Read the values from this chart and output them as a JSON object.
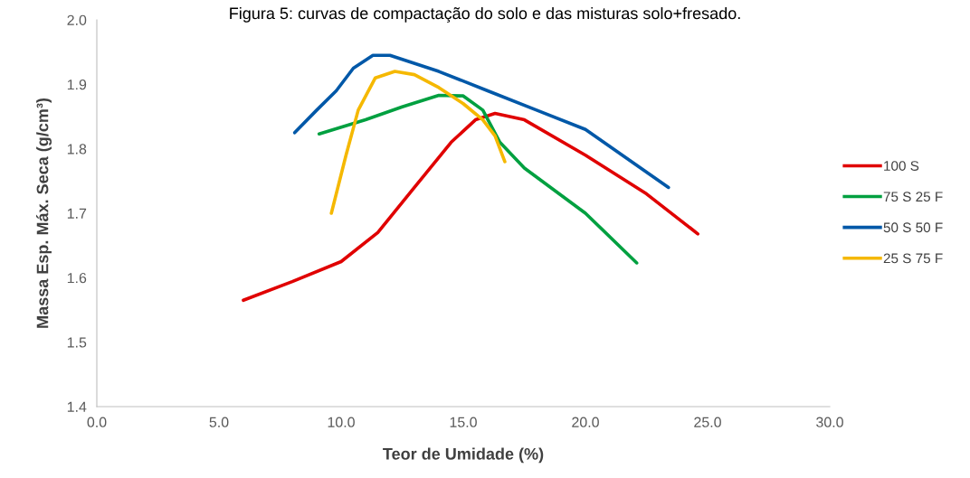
{
  "chart_data": {
    "type": "line",
    "title": "Figura 5: curvas de compactação do solo e das misturas solo+fresado.",
    "xlabel": "Teor de Umidade (%)",
    "ylabel": "Massa Esp. Máx. Seca (g/cm³)",
    "xlim": [
      0,
      30
    ],
    "xticks": [
      {
        "value": 0,
        "label": "0.0"
      },
      {
        "value": 5,
        "label": "5.0"
      },
      {
        "value": 10,
        "label": "10.0"
      },
      {
        "value": 15,
        "label": "15.0"
      },
      {
        "value": 20,
        "label": "20.0"
      },
      {
        "value": 25,
        "label": "25.0"
      },
      {
        "value": 30,
        "label": "30.0"
      }
    ],
    "ylim": [
      1.4,
      2.0
    ],
    "yticks": [
      1.4,
      1.5,
      1.6,
      1.7,
      1.8,
      1.9,
      {
        "value": 2.0,
        "label": "2.0"
      }
    ],
    "grid": false,
    "legend": "right",
    "line_style": "solid",
    "marker": "none",
    "series": [
      {
        "name": "100 S",
        "color": "#e00000",
        "x": [
          6.0,
          8.0,
          10.0,
          11.5,
          13.0,
          14.5,
          15.5,
          16.3,
          17.5,
          20.0,
          22.5,
          24.6
        ],
        "values": [
          1.565,
          1.594,
          1.625,
          1.67,
          1.74,
          1.81,
          1.845,
          1.855,
          1.845,
          1.79,
          1.73,
          1.668
        ]
      },
      {
        "name": "75 S 25 F",
        "color": "#00a040",
        "x": [
          9.1,
          11.0,
          12.5,
          14.0,
          15.0,
          15.8,
          16.5,
          17.5,
          20.0,
          22.1
        ],
        "values": [
          1.823,
          1.845,
          1.865,
          1.883,
          1.882,
          1.86,
          1.81,
          1.77,
          1.7,
          1.623
        ]
      },
      {
        "name": "50 S 50 F",
        "color": "#0058a8",
        "x": [
          8.1,
          9.0,
          9.8,
          10.5,
          11.3,
          12.0,
          14.0,
          16.0,
          18.0,
          20.0,
          23.4
        ],
        "values": [
          1.825,
          1.86,
          1.89,
          1.925,
          1.945,
          1.945,
          1.92,
          1.89,
          1.86,
          1.83,
          1.74
        ]
      },
      {
        "name": "25 S 75 F",
        "color": "#f5b800",
        "x": [
          9.6,
          10.2,
          10.7,
          11.4,
          12.2,
          13.0,
          14.0,
          15.0,
          15.8,
          16.3,
          16.7
        ],
        "values": [
          1.7,
          1.79,
          1.86,
          1.91,
          1.92,
          1.915,
          1.895,
          1.87,
          1.845,
          1.82,
          1.78
        ]
      }
    ]
  }
}
